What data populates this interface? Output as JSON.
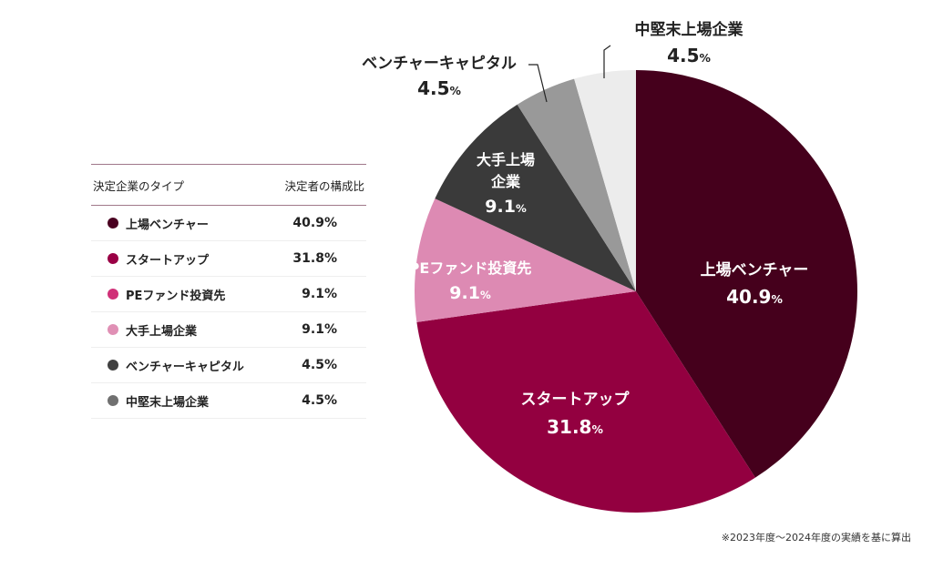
{
  "chart_data": {
    "type": "pie",
    "legend": {
      "header_type": "決定企業のタイプ",
      "header_ratio": "決定者の構成比",
      "placement": "left"
    },
    "slices": [
      {
        "label": "上場ベンチャー",
        "value": 40.9,
        "display": "40.9%",
        "color": "#45001c",
        "legend_color": "#4a0020"
      },
      {
        "label": "スタートアップ",
        "value": 31.8,
        "display": "31.8%",
        "color": "#930040",
        "legend_color": "#9a0045"
      },
      {
        "label": "PEファンド投資先",
        "value": 9.1,
        "display": "9.1%",
        "color": "#dd8ab3",
        "legend_color": "#d03078"
      },
      {
        "label": "大手上場企業",
        "value": 9.1,
        "display": "9.1%",
        "color": "#3a3a3a",
        "legend_color": "#e090b5"
      },
      {
        "label": "ベンチャーキャピタル",
        "value": 4.5,
        "display": "4.5%",
        "color": "#999999",
        "legend_color": "#404040"
      },
      {
        "label": "中堅末上場企業",
        "value": 4.5,
        "display": "4.5%",
        "color": "#ececec",
        "legend_color": "#707070"
      }
    ],
    "note": "※2023年度〜2024年度の実績を基に算出"
  }
}
